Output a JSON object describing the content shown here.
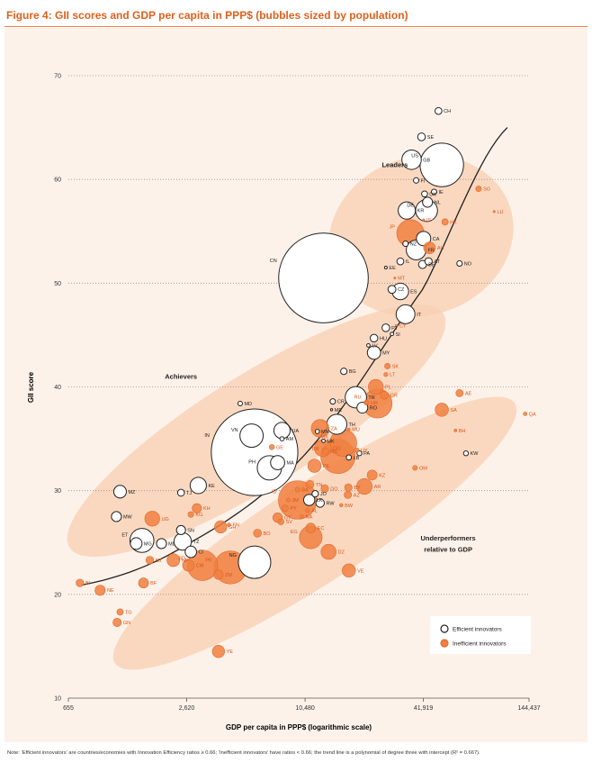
{
  "figure": {
    "title": "Figure 4: GII scores and GDP per capita in PPP$ (bubbles sized by population)",
    "note": "Note: ‘Efficient innovators’ are countries/economies with Innovation Efficiency ratios ≥ 0.66; ‘Inefficient innovators’ have ratios < 0.66; the trend line is a polynomial of degree three with intercept (R² = 0.667)."
  },
  "colors": {
    "efficient_stroke": "#222222",
    "efficient_fill": "#ffffff",
    "inefficient": "#f08040",
    "inefficient_stroke": "#e26a2e",
    "cluster": "#f8cfb0",
    "background": "#fdf2ea",
    "title": "#e0601c"
  },
  "chart_data": {
    "type": "scatter",
    "subtype": "bubble",
    "title": "Figure 4: GII scores and GDP per capita in PPP$ (bubbles sized by population)",
    "xlabel": "GDP per capita in PPP$ (logarithmic scale)",
    "ylabel": "GII score",
    "xscale": "log",
    "xlim": [
      655,
      144437
    ],
    "ylim": [
      10,
      70
    ],
    "xticks": [
      655,
      2620,
      10480,
      41919,
      144437
    ],
    "xtick_labels": [
      "655",
      "2,620",
      "10,480",
      "41,919",
      "144,437"
    ],
    "yticks": [
      10,
      20,
      30,
      40,
      50,
      60,
      70
    ],
    "ytick_labels": [
      "10",
      "20",
      "30",
      "40",
      "50",
      "60",
      "70"
    ],
    "grid": "horizontal dotted",
    "legend": {
      "placement": "bottom-right",
      "entries": [
        {
          "label": "Efficient innovators",
          "marker": "efficient"
        },
        {
          "label": "Inefficient innovators",
          "marker": "inefficient"
        }
      ]
    },
    "cluster_labels": [
      {
        "text": "Leaders",
        "x": 30000,
        "y": 61.2
      },
      {
        "text": "Achievers",
        "x": 2450,
        "y": 40.8
      },
      {
        "text": "Underperformers",
        "x": 56000,
        "y": 25.2
      },
      {
        "text": "relative to GDP",
        "x": 56000,
        "y": 24.1
      }
    ],
    "trendline": {
      "type": "polynomial",
      "degree": 3,
      "r2": 0.667,
      "x_range": [
        765,
        112000
      ]
    },
    "series": [
      {
        "name": "Efficient innovators",
        "points": [
          {
            "label": "CH",
            "x": 50000,
            "y": 66.6,
            "pop": 8
          },
          {
            "label": "SE",
            "x": 41000,
            "y": 64.1,
            "pop": 10
          },
          {
            "label": "GB",
            "x": 36500,
            "y": 61.9,
            "pop": 64
          },
          {
            "label": "US",
            "x": 52000,
            "y": 61.4,
            "pop": 320
          },
          {
            "label": "FI",
            "x": 38500,
            "y": 59.9,
            "pop": 5
          },
          {
            "label": "DK",
            "x": 42500,
            "y": 58.6,
            "pop": 6
          },
          {
            "label": "IE",
            "x": 47500,
            "y": 58.8,
            "pop": 5
          },
          {
            "label": "NL",
            "x": 44000,
            "y": 57.8,
            "pop": 17
          },
          {
            "label": "DE",
            "x": 43500,
            "y": 57.0,
            "pop": 81
          },
          {
            "label": "KR",
            "x": 34500,
            "y": 57.0,
            "pop": 50
          },
          {
            "label": "NZ",
            "x": 34000,
            "y": 53.8,
            "pop": 5
          },
          {
            "label": "CA",
            "x": 42000,
            "y": 54.3,
            "pop": 35
          },
          {
            "label": "FR",
            "x": 38500,
            "y": 53.2,
            "pop": 66
          },
          {
            "label": "IL",
            "x": 32000,
            "y": 52.1,
            "pop": 8
          },
          {
            "label": "AT",
            "x": 44500,
            "y": 52.1,
            "pop": 9
          },
          {
            "label": "BE",
            "x": 41500,
            "y": 51.8,
            "pop": 11
          },
          {
            "label": "NO",
            "x": 64000,
            "y": 51.9,
            "pop": 5
          },
          {
            "label": "CN",
            "x": 13000,
            "y": 50.5,
            "pop": 1360
          },
          {
            "label": "EE",
            "x": 27000,
            "y": 51.5,
            "pop": 1.3
          },
          {
            "label": "CZ",
            "x": 29000,
            "y": 49.4,
            "pop": 10.5
          },
          {
            "label": "ES",
            "x": 32000,
            "y": 49.2,
            "pop": 46
          },
          {
            "label": "IT",
            "x": 34000,
            "y": 47.0,
            "pop": 60
          },
          {
            "label": "PT",
            "x": 27000,
            "y": 45.7,
            "pop": 10
          },
          {
            "label": "SI",
            "x": 29000,
            "y": 45.1,
            "pop": 2
          },
          {
            "label": "HU",
            "x": 23500,
            "y": 44.7,
            "pop": 10
          },
          {
            "label": "LV",
            "x": 22000,
            "y": 44.0,
            "pop": 2
          },
          {
            "label": "MY",
            "x": 23500,
            "y": 43.3,
            "pop": 30
          },
          {
            "label": "BG",
            "x": 16500,
            "y": 41.5,
            "pop": 7
          },
          {
            "label": "TR",
            "x": 19000,
            "y": 39.0,
            "pop": 77
          },
          {
            "label": "MD",
            "x": 4900,
            "y": 38.4,
            "pop": 3.5
          },
          {
            "label": "CR",
            "x": 14500,
            "y": 38.6,
            "pop": 5
          },
          {
            "label": "ME",
            "x": 14300,
            "y": 37.8,
            "pop": 0.6
          },
          {
            "label": "RO",
            "x": 20500,
            "y": 38.0,
            "pop": 20
          },
          {
            "label": "UA",
            "x": 8000,
            "y": 35.8,
            "pop": 45
          },
          {
            "label": "VN",
            "x": 5600,
            "y": 35.3,
            "pop": 92
          },
          {
            "label": "AM",
            "x": 8000,
            "y": 35.0,
            "pop": 3
          },
          {
            "label": "TH",
            "x": 15200,
            "y": 36.4,
            "pop": 68
          },
          {
            "label": "MN",
            "x": 12100,
            "y": 35.7,
            "pop": 3
          },
          {
            "label": "MK",
            "x": 13000,
            "y": 34.8,
            "pop": 2
          },
          {
            "label": "IN",
            "x": 5800,
            "y": 33.7,
            "pop": 1270
          },
          {
            "label": "MA",
            "x": 7600,
            "y": 32.7,
            "pop": 34
          },
          {
            "label": "PH",
            "x": 6900,
            "y": 32.2,
            "pop": 100
          },
          {
            "label": "LB",
            "x": 17500,
            "y": 33.2,
            "pop": 4.5
          },
          {
            "label": "PA",
            "x": 19800,
            "y": 33.6,
            "pop": 4
          },
          {
            "label": "KE",
            "x": 3000,
            "y": 30.5,
            "pop": 45
          },
          {
            "label": "TJ",
            "x": 2450,
            "y": 29.8,
            "pop": 8
          },
          {
            "label": "MZ",
            "x": 1200,
            "y": 29.9,
            "pop": 27
          },
          {
            "label": "MW",
            "x": 1150,
            "y": 27.5,
            "pop": 17
          },
          {
            "label": "JO",
            "x": 11800,
            "y": 29.7,
            "pop": 7
          },
          {
            "label": "LK",
            "x": 11000,
            "y": 29.1,
            "pop": 21
          },
          {
            "label": "RW",
            "x": 12500,
            "y": 28.8,
            "pop": 12
          },
          {
            "label": "SN",
            "x": 2450,
            "y": 26.2,
            "pop": 14
          },
          {
            "label": "ET",
            "x": 1550,
            "y": 25.2,
            "pop": 97
          },
          {
            "label": "MG",
            "x": 1450,
            "y": 24.9,
            "pop": 23
          },
          {
            "label": "ML",
            "x": 1950,
            "y": 24.9,
            "pop": 17
          },
          {
            "label": "TZ",
            "x": 2500,
            "y": 25.1,
            "pop": 51
          },
          {
            "label": "CI",
            "x": 2750,
            "y": 24.1,
            "pop": 22
          },
          {
            "label": "NG",
            "x": 5800,
            "y": 23.1,
            "pop": 178
          },
          {
            "label": "KW",
            "x": 69000,
            "y": 33.6,
            "pop": 4
          }
        ]
      },
      {
        "name": "Inefficient innovators",
        "points": [
          {
            "label": "SG",
            "x": 80000,
            "y": 59.1,
            "pop": 5.5
          },
          {
            "label": "LU",
            "x": 96000,
            "y": 56.9,
            "pop": 0.5
          },
          {
            "label": "IS",
            "x": 42000,
            "y": 56.1,
            "pop": 0.3
          },
          {
            "label": "HK",
            "x": 54000,
            "y": 55.9,
            "pop": 7
          },
          {
            "label": "JP",
            "x": 36000,
            "y": 54.8,
            "pop": 127
          },
          {
            "label": "AU",
            "x": 45000,
            "y": 53.4,
            "pop": 23
          },
          {
            "label": "MT",
            "x": 30000,
            "y": 50.5,
            "pop": 0.4
          },
          {
            "label": "CY",
            "x": 30500,
            "y": 45.9,
            "pop": 1.1
          },
          {
            "label": "SK",
            "x": 27500,
            "y": 42.0,
            "pop": 5.4
          },
          {
            "label": "LT",
            "x": 27000,
            "y": 41.2,
            "pop": 2.9
          },
          {
            "label": "PL",
            "x": 24000,
            "y": 40.0,
            "pop": 38
          },
          {
            "label": "GR",
            "x": 26500,
            "y": 39.2,
            "pop": 11
          },
          {
            "label": "HR",
            "x": 21500,
            "y": 38.5,
            "pop": 4.2
          },
          {
            "label": "RU",
            "x": 24500,
            "y": 38.4,
            "pop": 144
          },
          {
            "label": "AE",
            "x": 64000,
            "y": 39.4,
            "pop": 9
          },
          {
            "label": "SA",
            "x": 52000,
            "y": 37.8,
            "pop": 30
          },
          {
            "label": "QA",
            "x": 138000,
            "y": 37.4,
            "pop": 2.2
          },
          {
            "label": "BH",
            "x": 61000,
            "y": 35.8,
            "pop": 1.3
          },
          {
            "label": "MU",
            "x": 17500,
            "y": 35.9,
            "pop": 1.3
          },
          {
            "label": "ZA",
            "x": 12500,
            "y": 36.0,
            "pop": 54
          },
          {
            "label": "MX",
            "x": 16400,
            "y": 34.6,
            "pop": 122
          },
          {
            "label": "CO",
            "x": 12900,
            "y": 34.1,
            "pop": 48
          },
          {
            "label": "UY",
            "x": 19200,
            "y": 33.9,
            "pop": 3.4
          },
          {
            "label": "BR",
            "x": 15400,
            "y": 33.3,
            "pop": 200
          },
          {
            "label": "RS",
            "x": 13300,
            "y": 33.8,
            "pop": 7.1
          },
          {
            "label": "GE",
            "x": 7100,
            "y": 34.2,
            "pop": 4.5
          },
          {
            "label": "OM",
            "x": 38000,
            "y": 32.2,
            "pop": 4
          },
          {
            "label": "PE",
            "x": 11700,
            "y": 32.4,
            "pop": 30
          },
          {
            "label": "KZ",
            "x": 23000,
            "y": 31.5,
            "pop": 17
          },
          {
            "label": "TN",
            "x": 11100,
            "y": 30.6,
            "pop": 11
          },
          {
            "label": "BA",
            "x": 9600,
            "y": 30.1,
            "pop": 3.8
          },
          {
            "label": "AR",
            "x": 21000,
            "y": 30.4,
            "pop": 42
          },
          {
            "label": "BY",
            "x": 17400,
            "y": 30.3,
            "pop": 9.5
          },
          {
            "label": "DO",
            "x": 13200,
            "y": 30.2,
            "pop": 10
          },
          {
            "label": "ID",
            "x": 9600,
            "y": 29.1,
            "pop": 250
          },
          {
            "label": "AZ",
            "x": 17300,
            "y": 29.6,
            "pop": 9.5
          },
          {
            "label": "JM",
            "x": 8600,
            "y": 29.1,
            "pop": 2.7
          },
          {
            "label": "PY",
            "x": 8300,
            "y": 28.3,
            "pop": 6.8
          },
          {
            "label": "AL",
            "x": 10800,
            "y": 28.1,
            "pop": 2.9
          },
          {
            "label": "BW",
            "x": 16000,
            "y": 28.6,
            "pop": 2
          },
          {
            "label": "NA",
            "x": 10100,
            "y": 27.5,
            "pop": 2.3
          },
          {
            "label": "SV",
            "x": 7900,
            "y": 27.0,
            "pop": 6.3
          },
          {
            "label": "GT",
            "x": 7600,
            "y": 27.4,
            "pop": 15.5
          },
          {
            "label": "KG",
            "x": 2750,
            "y": 27.7,
            "pop": 5.8
          },
          {
            "label": "KH",
            "x": 2950,
            "y": 28.3,
            "pop": 15
          },
          {
            "label": "UG",
            "x": 1750,
            "y": 27.3,
            "pop": 38
          },
          {
            "label": "FN",
            "x": 4300,
            "y": 26.7,
            "pop": 2.1
          },
          {
            "label": "GH",
            "x": 3900,
            "y": 26.5,
            "pop": 26
          },
          {
            "label": "EC",
            "x": 11200,
            "y": 26.4,
            "pop": 16
          },
          {
            "label": "BO",
            "x": 6000,
            "y": 25.9,
            "pop": 10.7
          },
          {
            "label": "EG",
            "x": 11200,
            "y": 25.5,
            "pop": 88
          },
          {
            "label": "DZ",
            "x": 13800,
            "y": 24.1,
            "pop": 39
          },
          {
            "label": "BJ",
            "x": 1700,
            "y": 23.3,
            "pop": 10.3
          },
          {
            "label": "NP",
            "x": 2240,
            "y": 23.3,
            "pop": 28
          },
          {
            "label": "CM",
            "x": 2670,
            "y": 22.8,
            "pop": 22.5
          },
          {
            "label": "BD",
            "x": 3150,
            "y": 22.8,
            "pop": 158
          },
          {
            "label": "PK",
            "x": 4370,
            "y": 22.6,
            "pop": 185
          },
          {
            "label": "ZM",
            "x": 3800,
            "y": 21.9,
            "pop": 15
          },
          {
            "label": "VE",
            "x": 17500,
            "y": 22.3,
            "pop": 30
          },
          {
            "label": "BF",
            "x": 1580,
            "y": 21.1,
            "pop": 17
          },
          {
            "label": "NE",
            "x": 950,
            "y": 20.4,
            "pop": 18
          },
          {
            "label": "BI",
            "x": 750,
            "y": 21.1,
            "pop": 10
          },
          {
            "label": "TG",
            "x": 1200,
            "y": 18.3,
            "pop": 7
          },
          {
            "label": "GN",
            "x": 1160,
            "y": 17.3,
            "pop": 12
          },
          {
            "label": "YE",
            "x": 3800,
            "y": 14.5,
            "pop": 26
          }
        ]
      }
    ]
  }
}
